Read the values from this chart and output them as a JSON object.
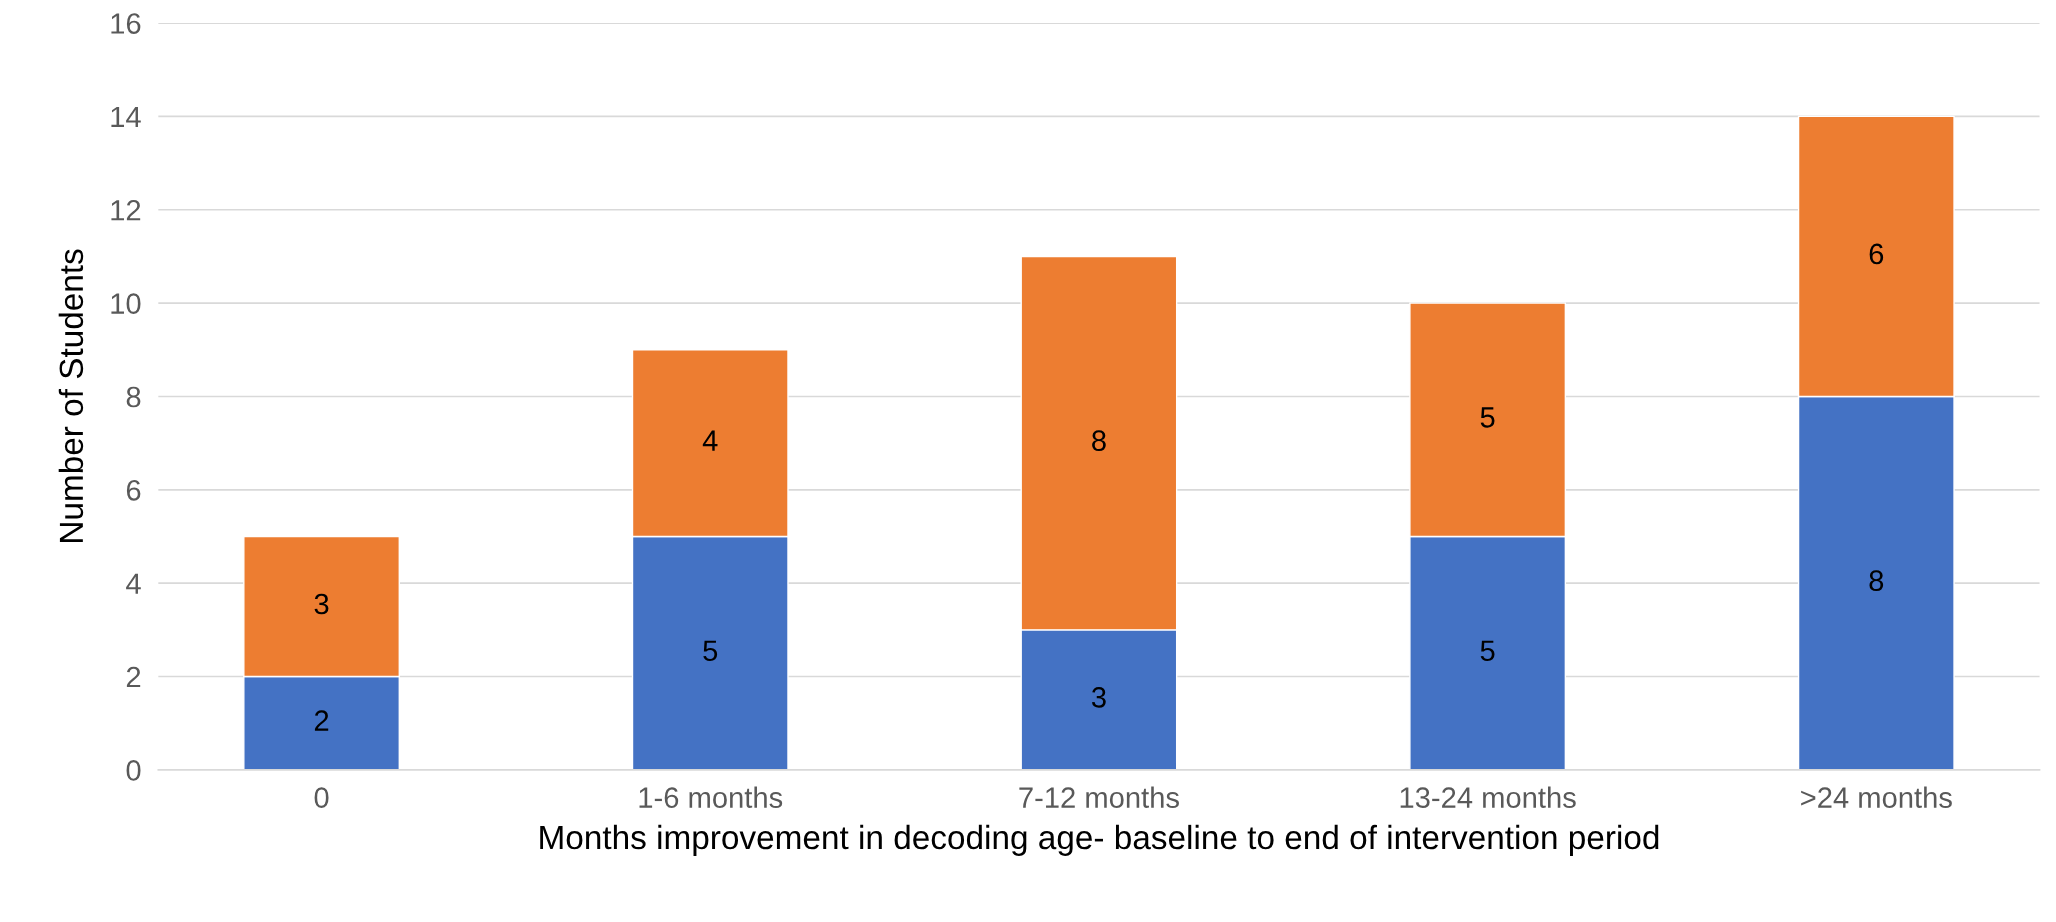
{
  "chart_data": {
    "type": "bar",
    "stacked": true,
    "categories": [
      "0",
      "1-6 months",
      "7-12 months",
      "13-24 months",
      ">24 months"
    ],
    "series": [
      {
        "color": "#4472c4",
        "values": [
          2,
          5,
          3,
          5,
          8
        ]
      },
      {
        "color": "#ed7d31",
        "values": [
          3,
          4,
          8,
          5,
          6
        ]
      }
    ],
    "xlabel": "Months improvement in decoding age- baseline to end of intervention period",
    "ylabel": "Number of Students",
    "ylim": [
      0,
      16
    ],
    "yticks": [
      0,
      2,
      4,
      6,
      8,
      10,
      12,
      14,
      16
    ],
    "grid": "y",
    "data_labels": true
  }
}
